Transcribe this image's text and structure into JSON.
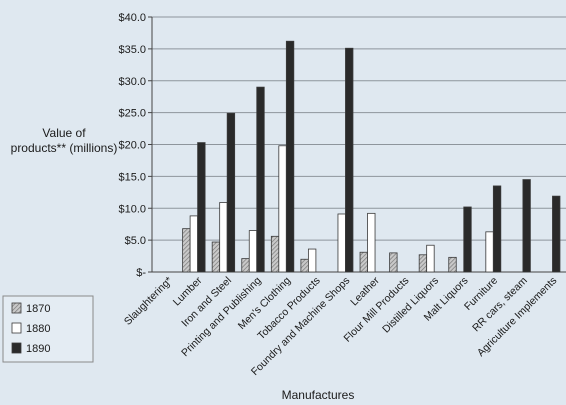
{
  "chart_data": {
    "type": "bar",
    "title": "",
    "xlabel": "Manufactures",
    "ylabel_lines": [
      "Value of",
      "products** (millions)"
    ],
    "ylim": [
      0,
      40
    ],
    "yticks": [
      {
        "value": 0,
        "label": "$-"
      },
      {
        "value": 5,
        "label": "$5.0"
      },
      {
        "value": 10,
        "label": "$10.0"
      },
      {
        "value": 15,
        "label": "$15.0"
      },
      {
        "value": 20,
        "label": "$20.0"
      },
      {
        "value": 25,
        "label": "$25.0"
      },
      {
        "value": 30,
        "label": "$30.0"
      },
      {
        "value": 35,
        "label": "$35.0"
      },
      {
        "value": 40,
        "label": "$40.0"
      }
    ],
    "grid": true,
    "legend_placement": "bottom-left",
    "categories": [
      "Slaughtering*",
      "Lumber",
      "Iron and Steel",
      "Printing and Publishing",
      "Men's Clothing",
      "Tobacco Products",
      "Foundry and Machine Shops",
      "Leather",
      "Flour Mill Products",
      "Distilled Liquors",
      "Malt Liquors",
      "Furniture",
      "RR cars, steam",
      "Agriculture Implements"
    ],
    "series": [
      {
        "name": "1870",
        "style": "hatched",
        "color": "#a9a9a9",
        "values": [
          0,
          6.8,
          4.7,
          2.1,
          5.6,
          2.0,
          0,
          3.1,
          3.0,
          2.7,
          2.3,
          0,
          0,
          0
        ]
      },
      {
        "name": "1880",
        "style": "white",
        "color": "#ffffff",
        "values": [
          0,
          8.8,
          10.9,
          6.5,
          19.8,
          3.6,
          9.1,
          9.2,
          0,
          4.2,
          0,
          6.3,
          0,
          0
        ]
      },
      {
        "name": "1890",
        "style": "dark",
        "color": "#2a2a2a",
        "values": [
          0,
          20.3,
          24.9,
          29.0,
          36.2,
          0,
          35.1,
          0,
          0,
          0,
          10.2,
          13.5,
          14.5,
          11.9
        ]
      }
    ]
  }
}
